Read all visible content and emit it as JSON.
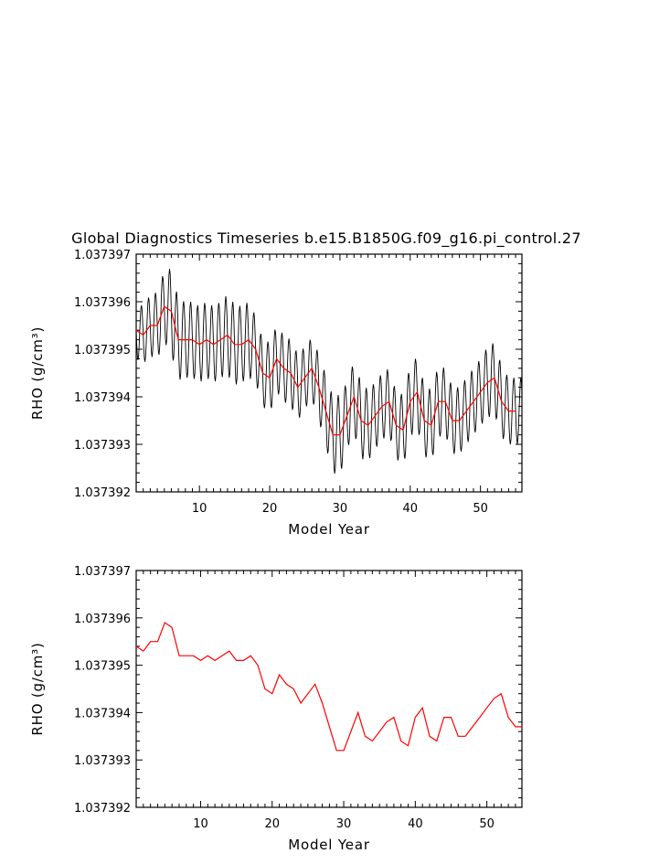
{
  "page_title": "Global Diagnostics Timeseries b.e15.B1850G.f09_g16.pi_control.27",
  "colors": {
    "monthly": "#000000",
    "annual": "#ff0000",
    "axis": "#000000"
  },
  "chart_data": [
    {
      "type": "line",
      "ylabel": "RHO (g/cm³)",
      "xlabel": "Model Year",
      "xlim": [
        1,
        55.9
      ],
      "ylim": [
        1.037392,
        1.037397
      ],
      "xticks": [
        10,
        20,
        30,
        40,
        50
      ],
      "xtick_labels": [
        "10",
        "20",
        "30",
        "40",
        "50"
      ],
      "yticks": [
        1.037392,
        1.037393,
        1.037394,
        1.037395,
        1.037396,
        1.037397
      ],
      "ytick_labels": [
        "1.037392",
        "1.037393",
        "1.037394",
        "1.037395",
        "1.037396",
        "1.037397"
      ],
      "series": [
        {
          "style": "monthly",
          "note": "monthly values oscillating around the annual mean",
          "amplitudes": [
            6e-07,
            6e-07,
            6.5e-07,
            7e-07,
            7.5e-07,
            9e-07,
            8.5e-07,
            8e-07,
            8e-07,
            8e-07,
            8e-07,
            8e-07,
            8e-07,
            8.5e-07,
            8.5e-07,
            8e-07,
            8e-07,
            7e-07,
            7e-07,
            7.5e-07,
            7e-07,
            7e-07,
            7e-07,
            7e-07,
            6.5e-07,
            6.5e-07,
            7e-07,
            7.5e-07,
            8e-07,
            8.5e-07,
            7e-07,
            7.5e-07,
            8e-07,
            7.5e-07,
            7e-07,
            7e-07,
            7e-07,
            7e-07,
            7.5e-07,
            7.5e-07,
            7.5e-07,
            7.5e-07,
            7.5e-07,
            7.5e-07,
            7e-07,
            7e-07,
            7e-07,
            7e-07,
            7e-07,
            7e-07,
            7.5e-07,
            7.5e-07,
            7.5e-07,
            7e-07,
            7e-07
          ]
        },
        {
          "style": "annual",
          "x": [
            1,
            2,
            3,
            4,
            5,
            6,
            7,
            8,
            9,
            10,
            11,
            12,
            13,
            14,
            15,
            16,
            17,
            18,
            19,
            20,
            21,
            22,
            23,
            24,
            25,
            26,
            27,
            28,
            29,
            30,
            31,
            32,
            33,
            34,
            35,
            36,
            37,
            38,
            39,
            40,
            41,
            42,
            43,
            44,
            45,
            46,
            47,
            48,
            49,
            50,
            51,
            52,
            53,
            54,
            55
          ],
          "values": [
            1.0373954,
            1.0373953,
            1.0373955,
            1.0373955,
            1.0373959,
            1.0373958,
            1.0373952,
            1.0373952,
            1.0373952,
            1.0373951,
            1.0373952,
            1.0373951,
            1.0373952,
            1.0373953,
            1.0373951,
            1.0373951,
            1.0373952,
            1.037395,
            1.0373945,
            1.0373944,
            1.0373948,
            1.0373946,
            1.0373945,
            1.0373942,
            1.0373944,
            1.0373946,
            1.0373942,
            1.0373937,
            1.0373932,
            1.0373932,
            1.0373936,
            1.037394,
            1.0373935,
            1.0373934,
            1.0373936,
            1.0373938,
            1.0373939,
            1.0373934,
            1.0373933,
            1.0373939,
            1.0373941,
            1.0373935,
            1.0373934,
            1.0373939,
            1.0373939,
            1.0373935,
            1.0373935,
            1.0373937,
            1.0373939,
            1.0373941,
            1.0373943,
            1.0373944,
            1.0373939,
            1.0373937,
            1.0373937
          ]
        }
      ]
    },
    {
      "type": "line",
      "ylabel": "RHO (g/cm³)",
      "xlabel": "Model Year",
      "xlim": [
        1,
        54.9
      ],
      "ylim": [
        1.037392,
        1.037397
      ],
      "xticks": [
        10,
        20,
        30,
        40,
        50
      ],
      "xtick_labels": [
        "10",
        "20",
        "30",
        "40",
        "50"
      ],
      "yticks": [
        1.037392,
        1.037393,
        1.037394,
        1.037395,
        1.037396,
        1.037397
      ],
      "ytick_labels": [
        "1.037392",
        "1.037393",
        "1.037394",
        "1.037395",
        "1.037396",
        "1.037397"
      ],
      "series": [
        {
          "style": "annual",
          "x": [
            1,
            2,
            3,
            4,
            5,
            6,
            7,
            8,
            9,
            10,
            11,
            12,
            13,
            14,
            15,
            16,
            17,
            18,
            19,
            20,
            21,
            22,
            23,
            24,
            25,
            26,
            27,
            28,
            29,
            30,
            31,
            32,
            33,
            34,
            35,
            36,
            37,
            38,
            39,
            40,
            41,
            42,
            43,
            44,
            45,
            46,
            47,
            48,
            49,
            50,
            51,
            52,
            53,
            54,
            55
          ],
          "values": [
            1.0373954,
            1.0373953,
            1.0373955,
            1.0373955,
            1.0373959,
            1.0373958,
            1.0373952,
            1.0373952,
            1.0373952,
            1.0373951,
            1.0373952,
            1.0373951,
            1.0373952,
            1.0373953,
            1.0373951,
            1.0373951,
            1.0373952,
            1.037395,
            1.0373945,
            1.0373944,
            1.0373948,
            1.0373946,
            1.0373945,
            1.0373942,
            1.0373944,
            1.0373946,
            1.0373942,
            1.0373937,
            1.0373932,
            1.0373932,
            1.0373936,
            1.037394,
            1.0373935,
            1.0373934,
            1.0373936,
            1.0373938,
            1.0373939,
            1.0373934,
            1.0373933,
            1.0373939,
            1.0373941,
            1.0373935,
            1.0373934,
            1.0373939,
            1.0373939,
            1.0373935,
            1.0373935,
            1.0373937,
            1.0373939,
            1.0373941,
            1.0373943,
            1.0373944,
            1.0373939,
            1.0373937,
            1.0373937
          ]
        }
      ]
    }
  ]
}
